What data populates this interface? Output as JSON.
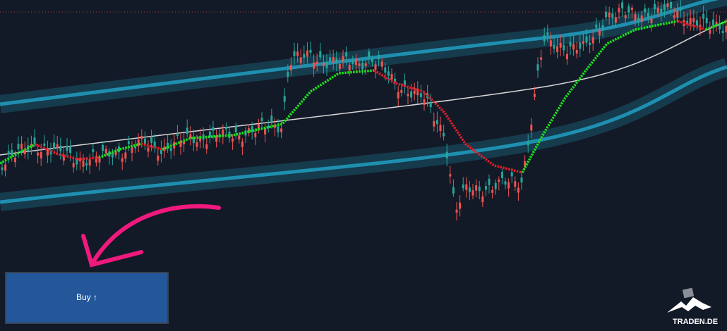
{
  "button": {
    "label": "Buy ↑"
  },
  "logo": {
    "text": "TRADEN.DE"
  }
}
